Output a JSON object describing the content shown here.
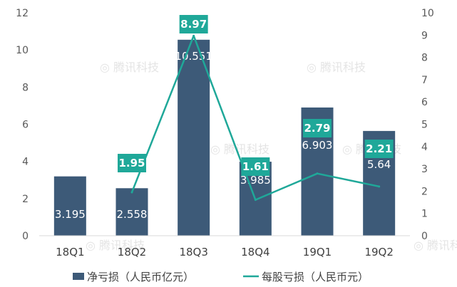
{
  "chart_data": {
    "type": "bar",
    "title": "",
    "categories": [
      "18Q1",
      "18Q2",
      "18Q3",
      "18Q4",
      "19Q1",
      "19Q2"
    ],
    "series": [
      {
        "name": "净亏损（人民币亿元）",
        "type": "bar",
        "axis": "left",
        "values": [
          3.195,
          2.558,
          10.551,
          3.985,
          6.903,
          5.64
        ],
        "labels": [
          "3.195",
          "2.558",
          "10.551",
          "3.985",
          "6.903",
          "5.64"
        ],
        "color": "#3d5a78"
      },
      {
        "name": "每股亏损（人民币元）",
        "type": "line",
        "axis": "right",
        "values": [
          null,
          1.95,
          8.97,
          1.61,
          2.79,
          2.21
        ],
        "labels": [
          null,
          "1.95",
          "8.97",
          "1.61",
          "2.79",
          "2.21"
        ],
        "color": "#1fa899"
      }
    ],
    "ylim_left": [
      0,
      12
    ],
    "yticks_left": [
      "0",
      "2",
      "4",
      "6",
      "8",
      "10",
      "12"
    ],
    "ylim_right": [
      0,
      10
    ],
    "yticks_right": [
      "0",
      "1",
      "2",
      "3",
      "4",
      "5",
      "6",
      "7",
      "8",
      "9",
      "10"
    ],
    "legend_position": "bottom",
    "grid": false
  },
  "watermark": "腾讯科技"
}
